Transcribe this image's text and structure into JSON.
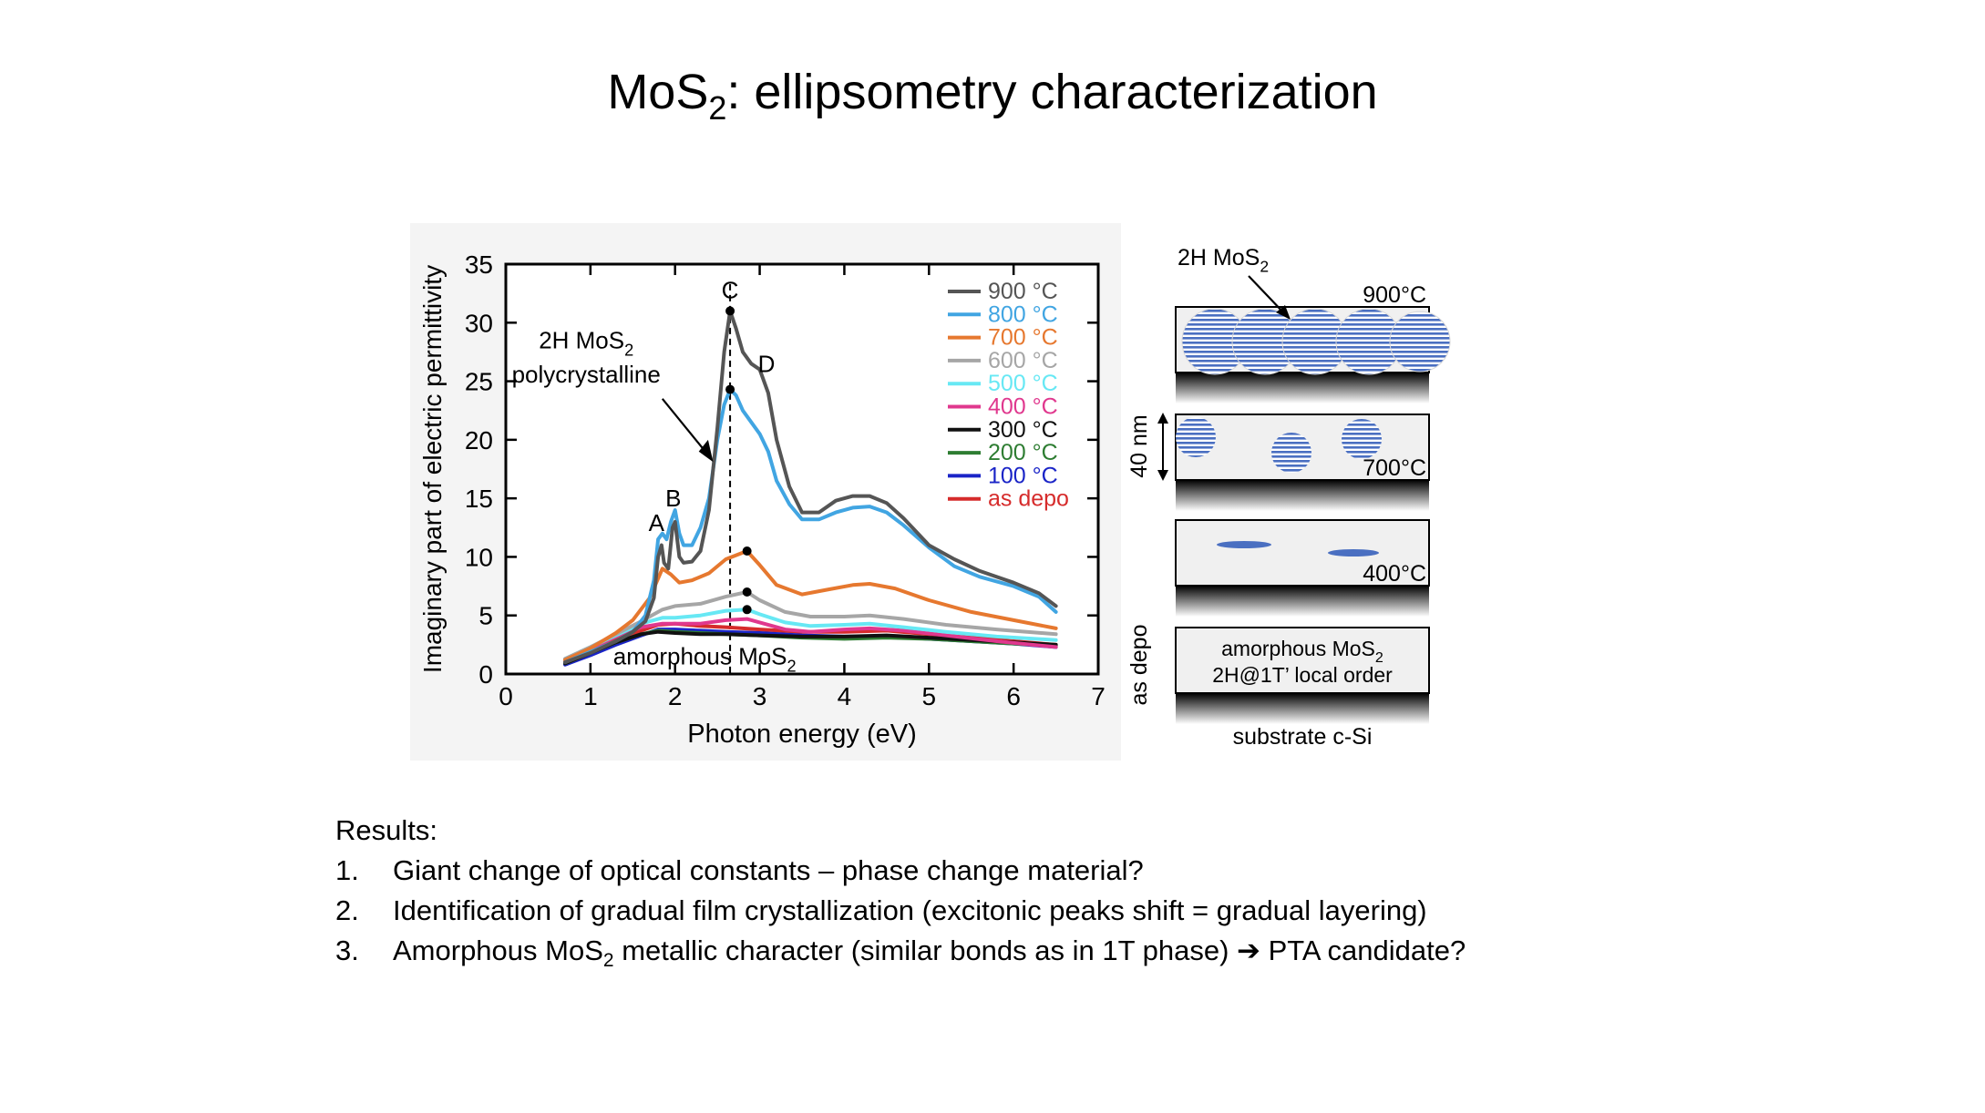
{
  "title": {
    "main": "MoS",
    "sub": "2",
    "rest": ": ellipsometry characterization"
  },
  "chart_data": {
    "type": "line",
    "xlabel": "Photon energy (eV)",
    "ylabel": "Imaginary part of electric permittivity",
    "xlim": [
      0,
      7
    ],
    "ylim": [
      0,
      35
    ],
    "xticks": [
      0,
      1,
      2,
      3,
      4,
      5,
      6,
      7
    ],
    "yticks": [
      0,
      5,
      10,
      15,
      20,
      25,
      30,
      35
    ],
    "grid": false,
    "legend_position": "top-right",
    "vline_x": 2.65,
    "series": [
      {
        "name": "900 °C",
        "color": "#555555",
        "points": [
          [
            0.7,
            1.0
          ],
          [
            1.0,
            1.8
          ],
          [
            1.3,
            2.8
          ],
          [
            1.5,
            3.6
          ],
          [
            1.65,
            4.5
          ],
          [
            1.75,
            6.5
          ],
          [
            1.8,
            10.0
          ],
          [
            1.84,
            11.0
          ],
          [
            1.87,
            9.5
          ],
          [
            1.92,
            9.0
          ],
          [
            1.97,
            12.5
          ],
          [
            2.0,
            13.0
          ],
          [
            2.05,
            10.0
          ],
          [
            2.1,
            9.5
          ],
          [
            2.2,
            9.6
          ],
          [
            2.3,
            10.5
          ],
          [
            2.4,
            14.0
          ],
          [
            2.5,
            21.0
          ],
          [
            2.58,
            27.5
          ],
          [
            2.65,
            31.0
          ],
          [
            2.72,
            29.5
          ],
          [
            2.8,
            27.5
          ],
          [
            2.9,
            26.5
          ],
          [
            3.0,
            26.0
          ],
          [
            3.1,
            24.0
          ],
          [
            3.2,
            20.0
          ],
          [
            3.35,
            16.0
          ],
          [
            3.5,
            13.8
          ],
          [
            3.7,
            13.8
          ],
          [
            3.9,
            14.8
          ],
          [
            4.1,
            15.2
          ],
          [
            4.3,
            15.2
          ],
          [
            4.5,
            14.6
          ],
          [
            4.7,
            13.3
          ],
          [
            5.0,
            11.0
          ],
          [
            5.3,
            9.8
          ],
          [
            5.6,
            8.8
          ],
          [
            6.0,
            7.8
          ],
          [
            6.3,
            6.9
          ],
          [
            6.5,
            5.8
          ]
        ]
      },
      {
        "name": "800 °C",
        "color": "#41a5e2",
        "points": [
          [
            0.7,
            1.0
          ],
          [
            1.0,
            1.9
          ],
          [
            1.3,
            2.8
          ],
          [
            1.5,
            3.6
          ],
          [
            1.65,
            5.0
          ],
          [
            1.75,
            8.0
          ],
          [
            1.8,
            11.5
          ],
          [
            1.85,
            12.0
          ],
          [
            1.9,
            11.5
          ],
          [
            1.95,
            13.0
          ],
          [
            2.0,
            14.0
          ],
          [
            2.05,
            12.0
          ],
          [
            2.1,
            11.0
          ],
          [
            2.2,
            11.0
          ],
          [
            2.3,
            12.5
          ],
          [
            2.4,
            15.0
          ],
          [
            2.5,
            20.0
          ],
          [
            2.58,
            23.0
          ],
          [
            2.65,
            24.3
          ],
          [
            2.72,
            23.8
          ],
          [
            2.8,
            22.5
          ],
          [
            2.9,
            21.5
          ],
          [
            3.0,
            20.5
          ],
          [
            3.1,
            19.0
          ],
          [
            3.2,
            16.5
          ],
          [
            3.35,
            14.5
          ],
          [
            3.5,
            13.2
          ],
          [
            3.7,
            13.2
          ],
          [
            3.9,
            13.8
          ],
          [
            4.1,
            14.2
          ],
          [
            4.3,
            14.3
          ],
          [
            4.5,
            13.8
          ],
          [
            4.7,
            12.7
          ],
          [
            5.0,
            10.8
          ],
          [
            5.3,
            9.2
          ],
          [
            5.6,
            8.3
          ],
          [
            6.0,
            7.5
          ],
          [
            6.3,
            6.6
          ],
          [
            6.5,
            5.3
          ]
        ]
      },
      {
        "name": "700 °C",
        "color": "#e6782f",
        "points": [
          [
            0.7,
            1.2
          ],
          [
            1.0,
            2.2
          ],
          [
            1.3,
            3.5
          ],
          [
            1.5,
            4.6
          ],
          [
            1.7,
            6.5
          ],
          [
            1.85,
            9.0
          ],
          [
            1.95,
            8.5
          ],
          [
            2.05,
            7.8
          ],
          [
            2.2,
            8.0
          ],
          [
            2.4,
            8.6
          ],
          [
            2.6,
            9.8
          ],
          [
            2.85,
            10.5
          ],
          [
            3.0,
            9.3
          ],
          [
            3.2,
            7.6
          ],
          [
            3.5,
            6.8
          ],
          [
            3.8,
            7.2
          ],
          [
            4.1,
            7.6
          ],
          [
            4.3,
            7.7
          ],
          [
            4.6,
            7.3
          ],
          [
            5.0,
            6.3
          ],
          [
            5.5,
            5.3
          ],
          [
            6.0,
            4.6
          ],
          [
            6.5,
            3.9
          ]
        ]
      },
      {
        "name": "600 °C",
        "color": "#a6a6a6",
        "points": [
          [
            0.7,
            1.3
          ],
          [
            1.0,
            2.3
          ],
          [
            1.3,
            3.4
          ],
          [
            1.6,
            4.5
          ],
          [
            1.85,
            5.5
          ],
          [
            2.0,
            5.8
          ],
          [
            2.3,
            6.0
          ],
          [
            2.6,
            6.6
          ],
          [
            2.85,
            7.0
          ],
          [
            3.0,
            6.3
          ],
          [
            3.3,
            5.3
          ],
          [
            3.6,
            4.9
          ],
          [
            4.0,
            4.9
          ],
          [
            4.3,
            5.0
          ],
          [
            4.7,
            4.7
          ],
          [
            5.2,
            4.2
          ],
          [
            5.8,
            3.8
          ],
          [
            6.5,
            3.4
          ]
        ]
      },
      {
        "name": "500 °C",
        "color": "#67e8f4",
        "points": [
          [
            0.7,
            1.3
          ],
          [
            1.0,
            2.3
          ],
          [
            1.3,
            3.3
          ],
          [
            1.6,
            4.3
          ],
          [
            1.85,
            4.8
          ],
          [
            2.0,
            4.8
          ],
          [
            2.3,
            5.0
          ],
          [
            2.6,
            5.4
          ],
          [
            2.85,
            5.5
          ],
          [
            3.0,
            5.1
          ],
          [
            3.3,
            4.4
          ],
          [
            3.6,
            4.1
          ],
          [
            4.0,
            4.2
          ],
          [
            4.3,
            4.3
          ],
          [
            4.7,
            4.0
          ],
          [
            5.2,
            3.6
          ],
          [
            5.8,
            3.2
          ],
          [
            6.5,
            2.9
          ]
        ]
      },
      {
        "name": "400 °C",
        "color": "#e0388e",
        "points": [
          [
            0.7,
            1.2
          ],
          [
            1.0,
            2.2
          ],
          [
            1.3,
            3.2
          ],
          [
            1.6,
            4.0
          ],
          [
            1.85,
            4.3
          ],
          [
            2.0,
            4.3
          ],
          [
            2.3,
            4.3
          ],
          [
            2.6,
            4.6
          ],
          [
            2.85,
            4.7
          ],
          [
            3.0,
            4.4
          ],
          [
            3.3,
            3.8
          ],
          [
            3.6,
            3.6
          ],
          [
            4.0,
            3.8
          ],
          [
            4.3,
            3.9
          ],
          [
            4.7,
            3.7
          ],
          [
            5.2,
            3.3
          ],
          [
            5.8,
            2.8
          ],
          [
            6.5,
            2.3
          ]
        ]
      },
      {
        "name": "300 °C",
        "color": "#111111",
        "points": [
          [
            0.7,
            0.9
          ],
          [
            1.0,
            1.8
          ],
          [
            1.3,
            2.7
          ],
          [
            1.6,
            3.4
          ],
          [
            1.8,
            3.6
          ],
          [
            2.0,
            3.5
          ],
          [
            2.3,
            3.4
          ],
          [
            2.6,
            3.4
          ],
          [
            3.0,
            3.3
          ],
          [
            3.5,
            3.2
          ],
          [
            4.0,
            3.2
          ],
          [
            4.5,
            3.3
          ],
          [
            5.0,
            3.1
          ],
          [
            5.5,
            2.9
          ],
          [
            6.0,
            2.7
          ],
          [
            6.5,
            2.5
          ]
        ]
      },
      {
        "name": "200 °C",
        "color": "#2e7d32",
        "points": [
          [
            0.7,
            0.9
          ],
          [
            1.0,
            1.8
          ],
          [
            1.3,
            2.7
          ],
          [
            1.6,
            3.4
          ],
          [
            1.8,
            3.7
          ],
          [
            2.0,
            3.6
          ],
          [
            2.3,
            3.5
          ],
          [
            2.6,
            3.4
          ],
          [
            3.0,
            3.3
          ],
          [
            3.5,
            3.1
          ],
          [
            4.0,
            3.0
          ],
          [
            4.5,
            3.1
          ],
          [
            5.0,
            3.0
          ],
          [
            5.5,
            2.8
          ],
          [
            6.0,
            2.6
          ],
          [
            6.5,
            2.4
          ]
        ]
      },
      {
        "name": "100 °C",
        "color": "#1a24c7",
        "points": [
          [
            0.7,
            0.8
          ],
          [
            1.0,
            1.6
          ],
          [
            1.3,
            2.5
          ],
          [
            1.6,
            3.3
          ],
          [
            1.8,
            3.8
          ],
          [
            2.0,
            3.8
          ],
          [
            2.3,
            3.7
          ],
          [
            2.6,
            3.6
          ],
          [
            3.0,
            3.5
          ],
          [
            3.5,
            3.3
          ],
          [
            4.0,
            3.2
          ],
          [
            4.5,
            3.2
          ],
          [
            5.0,
            3.0
          ],
          [
            5.5,
            2.8
          ],
          [
            6.0,
            2.6
          ],
          [
            6.5,
            2.3
          ]
        ]
      },
      {
        "name": "as depo",
        "color": "#d62b2b",
        "points": [
          [
            0.7,
            1.0
          ],
          [
            1.0,
            1.9
          ],
          [
            1.3,
            2.9
          ],
          [
            1.6,
            3.7
          ],
          [
            1.8,
            4.2
          ],
          [
            2.0,
            4.3
          ],
          [
            2.3,
            4.1
          ],
          [
            2.6,
            4.0
          ],
          [
            3.0,
            3.8
          ],
          [
            3.5,
            3.6
          ],
          [
            4.0,
            3.6
          ],
          [
            4.5,
            3.7
          ],
          [
            5.0,
            3.4
          ],
          [
            5.5,
            3.1
          ],
          [
            6.0,
            2.8
          ],
          [
            6.5,
            2.5
          ]
        ]
      }
    ],
    "markers": [
      [
        2.65,
        31.0
      ],
      [
        2.65,
        24.3
      ],
      [
        2.85,
        10.5
      ],
      [
        2.85,
        7.0
      ],
      [
        2.85,
        5.5
      ]
    ],
    "annotations": {
      "A": "A",
      "B": "B",
      "C": "C",
      "D": "D",
      "crystal_line1": "2H MoS",
      "crystal_sub": "2",
      "crystal_line2": "polycrystalline",
      "amorphous": "amorphous MoS",
      "amorphous_sub": "2"
    }
  },
  "diagram": {
    "top_label": "2H MoS",
    "top_label_sub": "2",
    "panels": [
      {
        "label": "900°C"
      },
      {
        "label": "700°C"
      },
      {
        "label": "400°C"
      },
      {
        "line1": "amorphous MoS",
        "line1_sub": "2",
        "line2": "2H@1T’ local order"
      }
    ],
    "thickness_label": "40 nm",
    "as_depo_label": "as depo",
    "substrate_label": "substrate c-Si"
  },
  "results": {
    "heading": "Results:",
    "items": [
      {
        "num": "1.",
        "text": "Giant change of optical constants – phase change material?"
      },
      {
        "num": "2.",
        "text": "Identification of gradual film crystallization (excitonic peaks shift = gradual layering)"
      },
      {
        "num": "3.",
        "text_a": "Amorphous MoS",
        "sub": "2",
        "text_b": " metallic character (similar bonds as in 1T phase) ",
        "arrow": "➔",
        "text_c": " PTA candidate?"
      }
    ]
  }
}
